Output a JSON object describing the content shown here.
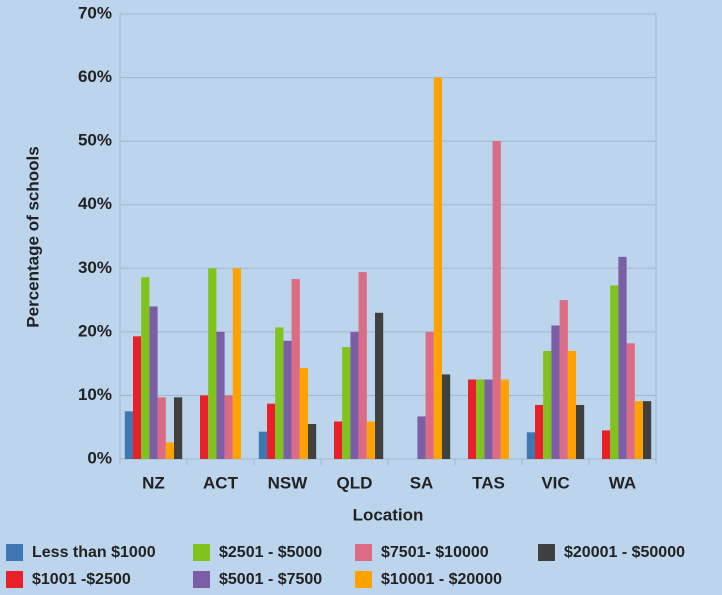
{
  "chart_data": {
    "type": "bar",
    "xlabel": "Location",
    "ylabel": "Percentage of schools",
    "categories": [
      "NZ",
      "ACT",
      "NSW",
      "QLD",
      "SA",
      "TAS",
      "VIC",
      "WA"
    ],
    "series": [
      {
        "name": "Less than $1000",
        "color": "#3f77b3",
        "values": [
          7.5,
          0,
          4.3,
          0,
          0,
          0,
          4.2,
          0
        ]
      },
      {
        "name": "$1001 -$2500",
        "color": "#e8202a",
        "values": [
          19.3,
          10,
          8.7,
          5.9,
          0,
          12.5,
          8.5,
          4.5
        ]
      },
      {
        "name": "$2501 - $5000",
        "color": "#7fc31c",
        "values": [
          28.6,
          30,
          20.7,
          17.6,
          0,
          12.5,
          17,
          27.3
        ]
      },
      {
        "name": "$5001 - $7500",
        "color": "#7b5ea6",
        "values": [
          24,
          20,
          18.6,
          20,
          6.7,
          12.5,
          21,
          31.8
        ]
      },
      {
        "name": "$7501- $10000",
        "color": "#dc6c84",
        "values": [
          9.7,
          10,
          28.3,
          29.4,
          20,
          50,
          25,
          18.2
        ]
      },
      {
        "name": "$10001 - $20000",
        "color": "#ffa200",
        "values": [
          2.6,
          30,
          14.3,
          5.9,
          60,
          12.5,
          17,
          9.1
        ]
      },
      {
        "name": "$20001 - $50000",
        "color": "#404040",
        "values": [
          9.7,
          0,
          5.5,
          23,
          13.3,
          0,
          8.5,
          9.1
        ]
      }
    ],
    "ylim": [
      0,
      70
    ],
    "yticks": [
      {
        "value": 0,
        "label": "0%"
      },
      {
        "value": 10,
        "label": "10%"
      },
      {
        "value": 20,
        "label": "20%"
      },
      {
        "value": 30,
        "label": "30%"
      },
      {
        "value": 40,
        "label": "40%"
      },
      {
        "value": 50,
        "label": "50%"
      },
      {
        "value": 60,
        "label": "60%"
      },
      {
        "value": 70,
        "label": "70%"
      }
    ],
    "grid": true,
    "legend": "bottom"
  }
}
